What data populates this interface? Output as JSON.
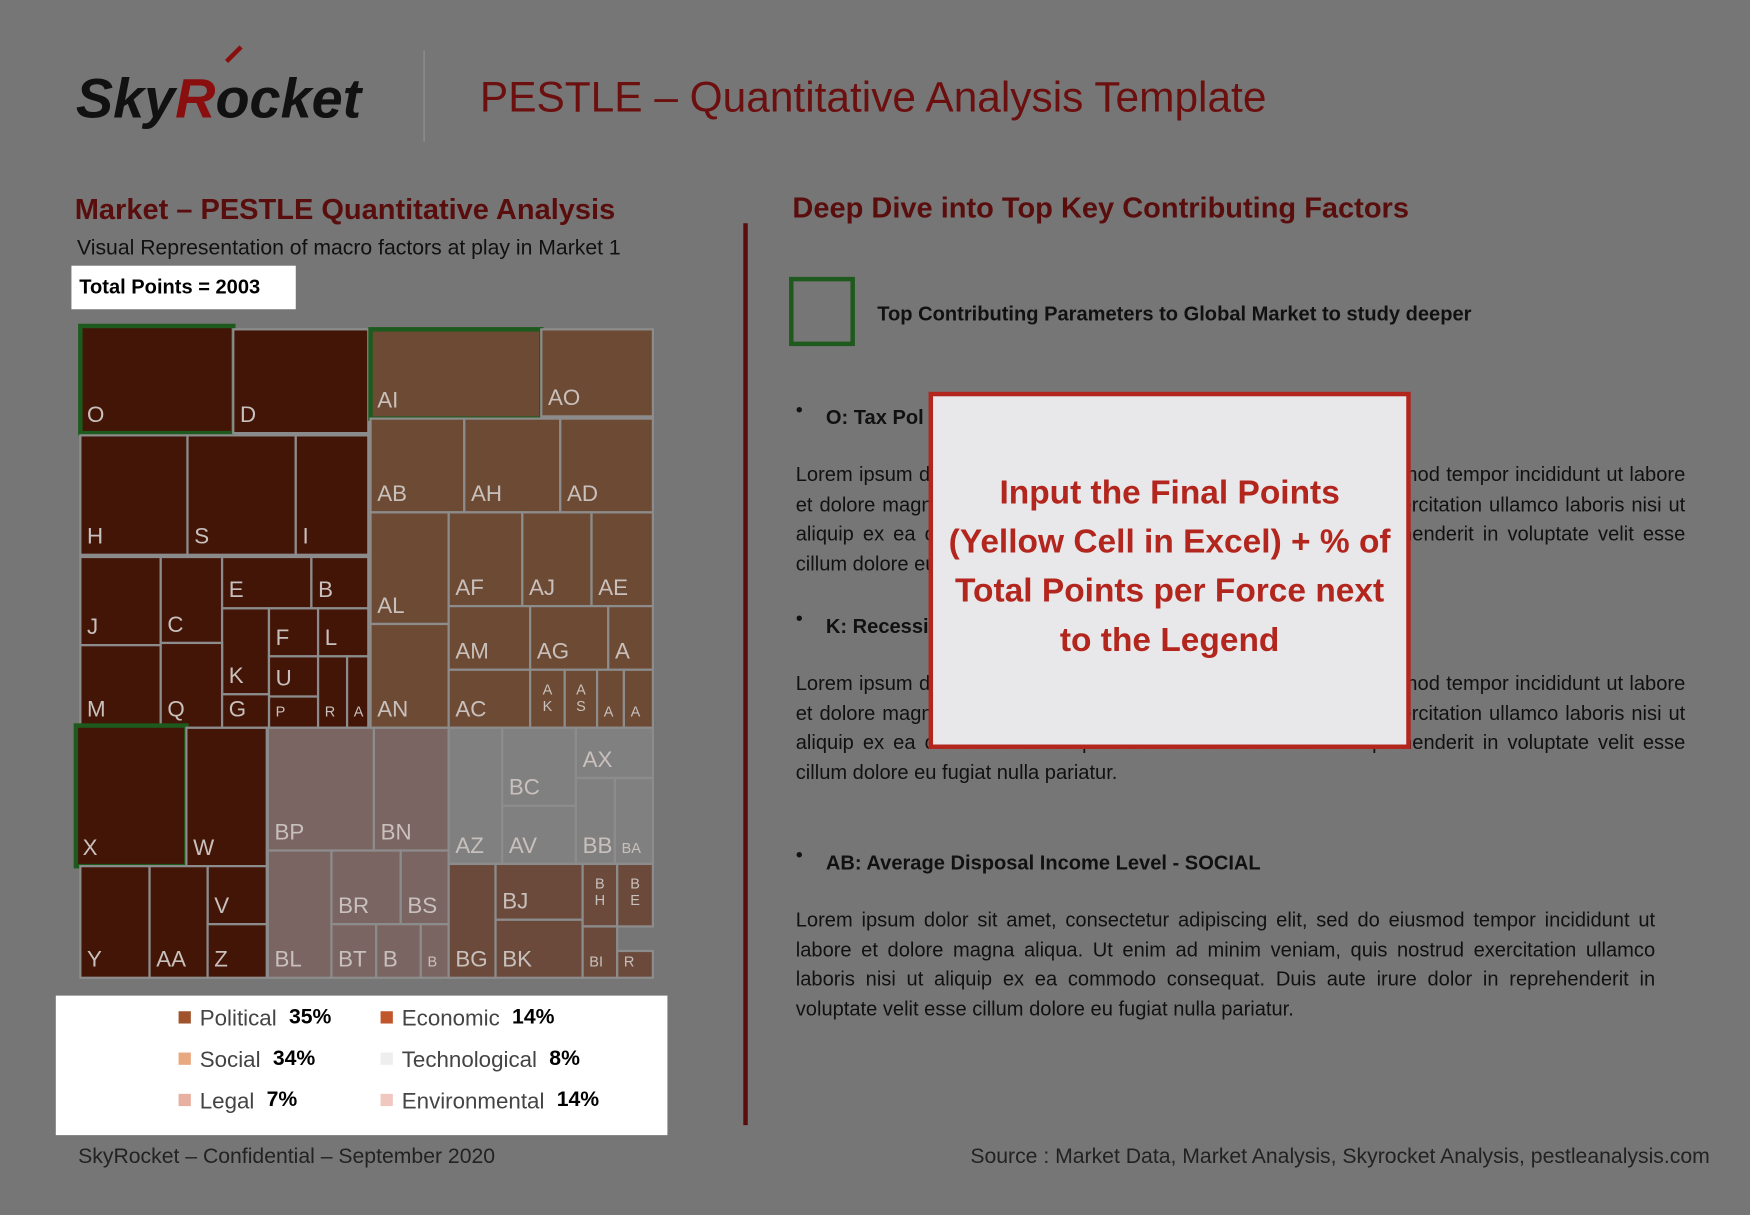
{
  "header": {
    "logo": {
      "first": "Sky",
      "accent": "R",
      "rest": "ocket"
    },
    "title": "PESTLE – Quantitative Analysis Template"
  },
  "left": {
    "heading": "Market – PESTLE Quantitative Analysis",
    "subtitle": "Visual Representation of macro factors at play in Market 1",
    "total": "Total Points = 2003",
    "treemap": {
      "cells": [
        "O",
        "D",
        "H",
        "S",
        "I",
        "J",
        "C",
        "E",
        "B",
        "K",
        "F",
        "L",
        "U",
        "P",
        "R",
        "A",
        "M",
        "Q",
        "G",
        "X",
        "W",
        "V",
        "Y",
        "AA",
        "Z",
        "AI",
        "AO",
        "AB",
        "AH",
        "AD",
        "AL",
        "AF",
        "AJ",
        "AE",
        "AN",
        "AM",
        "AG",
        "A",
        "AC",
        "AK",
        "AS",
        "A",
        "A",
        "BP",
        "BN",
        "BL",
        "BR",
        "BS",
        "BT",
        "B",
        "B",
        "AZ",
        "BC",
        "AV",
        "AX",
        "BB",
        "BA",
        "BG",
        "BJ",
        "BK",
        "BH",
        "BE",
        "BI",
        "R"
      ]
    },
    "legend": [
      {
        "name": "Political",
        "share": "35%"
      },
      {
        "name": "Economic",
        "share": "14%"
      },
      {
        "name": "Social",
        "share": "34%"
      },
      {
        "name": "Technological",
        "share": "8%"
      },
      {
        "name": "Legal",
        "share": "7%"
      },
      {
        "name": "Environmental",
        "share": "14%"
      }
    ],
    "footer": "SkyRocket – Confidential – September 2020"
  },
  "right": {
    "heading": "Deep Dive into Top Key Contributing Factors",
    "key": "Top Contributing Parameters to Global Market to study deeper",
    "bullets": [
      {
        "title": "O: Tax Pol",
        "body": "Lorem ipsum dolor sit amet, consectetur adipiscing elit, sed do eiusmod tempor incididunt ut labore et dolore magna aliqua. Ut enim ad minim veniam, quis nostrud exercitation ullamco laboris nisi ut aliquip ex ea commodo consequat. Duis aute irure dolor in reprehenderit in voluptate velit esse cillum dolore eu fugiat nulla pariatur."
      },
      {
        "title": "K: Recessi",
        "body": "Lorem ipsum dolor sit amet, consectetur adipiscing elit, sed do eiusmod tempor incididunt ut labore et dolore magna aliqua. Ut enim ad minim veniam, quis nostrud exercitation ullamco laboris nisi ut aliquip ex ea commodo consequat. Duis aute irure dolor in reprehenderit in voluptate velit esse cillum dolore eu fugiat nulla pariatur."
      },
      {
        "title": "AB: Average Disposal Income Level - SOCIAL",
        "body": "Lorem ipsum dolor sit amet, consectetur adipiscing elit, sed do eiusmod tempor incididunt ut labore et dolore magna aliqua. Ut enim ad minim veniam, quis nostrud exercitation ullamco laboris nisi ut aliquip ex ea commodo consequat. Duis aute irure dolor in reprehenderit in voluptate velit esse cillum dolore eu fugiat nulla pariatur."
      }
    ],
    "source": "Source : Market Data, Market Analysis, Skyrocket Analysis, pestleanalysis.com"
  },
  "overlay": {
    "text": "Input the Final Points (Yellow Cell in Excel) + % of Total Points per Force next to the Legend"
  }
}
